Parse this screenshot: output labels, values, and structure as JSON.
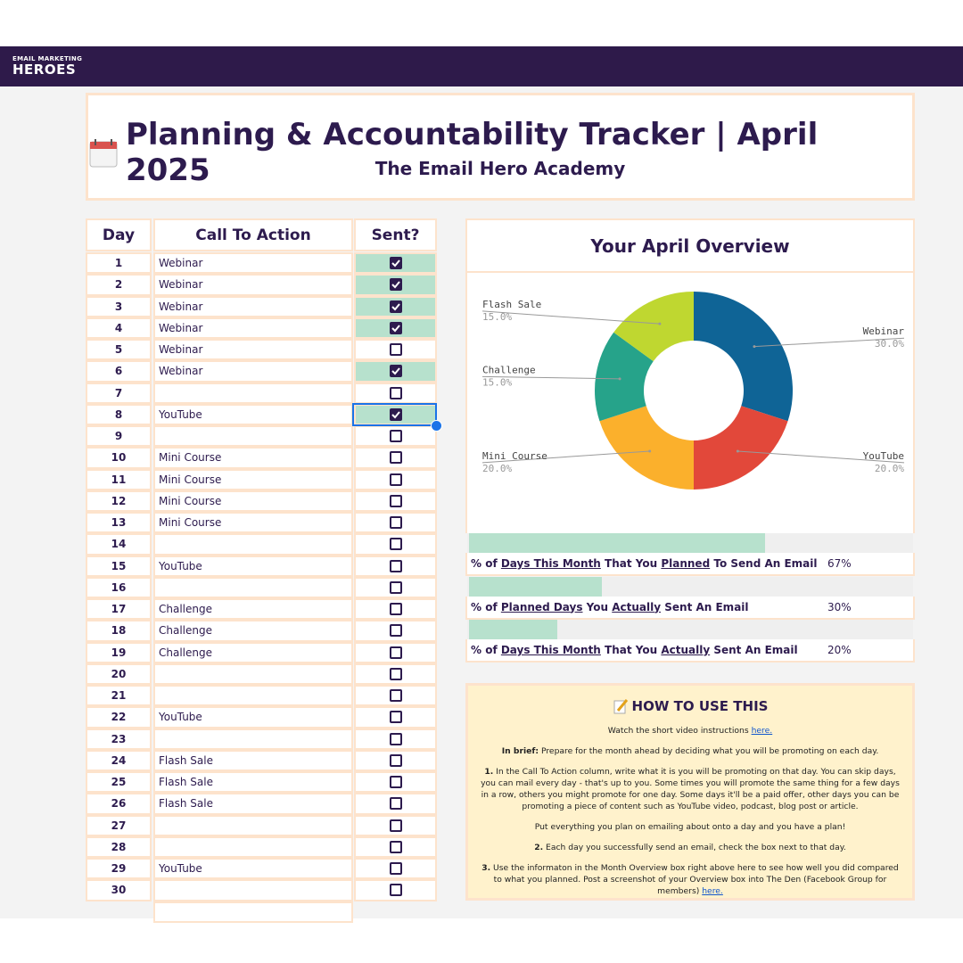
{
  "logo": {
    "top": "EMAIL MARKETING",
    "bottom": "HEROES"
  },
  "header": {
    "title": "Planning & Accountability Tracker | April 2025",
    "subtitle": "The Email Hero Academy"
  },
  "table": {
    "headers": [
      "Day",
      "Call To Action",
      "Sent?"
    ],
    "rows": [
      {
        "day": 1,
        "cta": "Webinar",
        "sent": true
      },
      {
        "day": 2,
        "cta": "Webinar",
        "sent": true
      },
      {
        "day": 3,
        "cta": "Webinar",
        "sent": true
      },
      {
        "day": 4,
        "cta": "Webinar",
        "sent": true
      },
      {
        "day": 5,
        "cta": "Webinar",
        "sent": false
      },
      {
        "day": 6,
        "cta": "Webinar",
        "sent": true
      },
      {
        "day": 7,
        "cta": null,
        "sent": false
      },
      {
        "day": 8,
        "cta": "YouTube",
        "sent": true
      },
      {
        "day": 9,
        "cta": null,
        "sent": false
      },
      {
        "day": 10,
        "cta": "Mini Course",
        "sent": false
      },
      {
        "day": 11,
        "cta": "Mini Course",
        "sent": false
      },
      {
        "day": 12,
        "cta": "Mini Course",
        "sent": false
      },
      {
        "day": 13,
        "cta": "Mini Course",
        "sent": false
      },
      {
        "day": 14,
        "cta": null,
        "sent": false
      },
      {
        "day": 15,
        "cta": "YouTube",
        "sent": false
      },
      {
        "day": 16,
        "cta": null,
        "sent": false
      },
      {
        "day": 17,
        "cta": "Challenge",
        "sent": false
      },
      {
        "day": 18,
        "cta": "Challenge",
        "sent": false
      },
      {
        "day": 19,
        "cta": "Challenge",
        "sent": false
      },
      {
        "day": 20,
        "cta": null,
        "sent": false
      },
      {
        "day": 21,
        "cta": null,
        "sent": false
      },
      {
        "day": 22,
        "cta": "YouTube",
        "sent": false
      },
      {
        "day": 23,
        "cta": null,
        "sent": false
      },
      {
        "day": 24,
        "cta": "Flash Sale",
        "sent": false
      },
      {
        "day": 25,
        "cta": "Flash Sale",
        "sent": false
      },
      {
        "day": 26,
        "cta": "Flash Sale",
        "sent": false
      },
      {
        "day": 27,
        "cta": null,
        "sent": false
      },
      {
        "day": 28,
        "cta": null,
        "sent": false
      },
      {
        "day": 29,
        "cta": "YouTube",
        "sent": false
      },
      {
        "day": 30,
        "cta": null,
        "sent": false
      }
    ]
  },
  "chart_data": {
    "type": "donut",
    "title": "Your April Overview",
    "categories": [
      "Webinar",
      "YouTube",
      "Mini Course",
      "Challenge",
      "Flash Sale"
    ],
    "values": [
      30,
      20,
      20,
      15,
      15
    ],
    "value_labels": [
      "30.0%",
      "20.0%",
      "20.0%",
      "15.0%",
      "15.0%"
    ],
    "colors": [
      "#0f6496",
      "#e2483a",
      "#fbb02c",
      "#26a38a",
      "#bfd730"
    ]
  },
  "stats": [
    {
      "label": [
        {
          "text": "% of "
        },
        {
          "text": "Days This Month",
          "underline": true
        },
        {
          "text": " That You "
        },
        {
          "text": "Planned",
          "underline": true
        },
        {
          "text": " To Send An Email"
        }
      ],
      "value": 67,
      "value_label": "67%"
    },
    {
      "label": [
        {
          "text": "% of "
        },
        {
          "text": "Planned Days",
          "underline": true
        },
        {
          "text": " You "
        },
        {
          "text": "Actually",
          "underline": true
        },
        {
          "text": " Sent An Email"
        }
      ],
      "value": 30,
      "value_label": "30%"
    },
    {
      "label": [
        {
          "text": "% of "
        },
        {
          "text": "Days This Month",
          "underline": true
        },
        {
          "text": " That You "
        },
        {
          "text": "Actually",
          "underline": true
        },
        {
          "text": " Sent An Email"
        }
      ],
      "value": 20,
      "value_label": "20%"
    }
  ],
  "how_to": {
    "title": "HOW TO USE THIS",
    "paragraphs": [
      [
        {
          "text": "Watch the short video instructions "
        },
        {
          "text": "here.",
          "link": true
        }
      ],
      [
        {
          "text": "In brief:",
          "bold": true
        },
        {
          "text": " Prepare for the month ahead by deciding what you will be promoting on each day."
        }
      ],
      [
        {
          "text": "1.",
          "bold": true
        },
        {
          "text": " In the Call To Action column, write what it is you will be promoting on that day. You can skip days, you can mail every day - that's up to you. Some times you will promote the same thing for a few days in a row, others you might promote for one day. Some days it'll be a paid offer, other days you can be promoting a piece of content such as YouTube video, podcast, blog post or article."
        }
      ],
      [
        {
          "text": "Put everything you plan on emailing about onto a day and you have a plan!"
        }
      ],
      [
        {
          "text": "2.",
          "bold": true
        },
        {
          "text": " Each day you successfully send an email, check the box next to that day."
        }
      ],
      [
        {
          "text": "3.",
          "bold": true
        },
        {
          "text": " Use the informaton in the Month Overview box right above here to see how well you did compared to what you planned. Post a screenshot of your Overview box into The Den (Facebook Group for members) "
        },
        {
          "text": "here.",
          "link": true
        }
      ]
    ]
  }
}
